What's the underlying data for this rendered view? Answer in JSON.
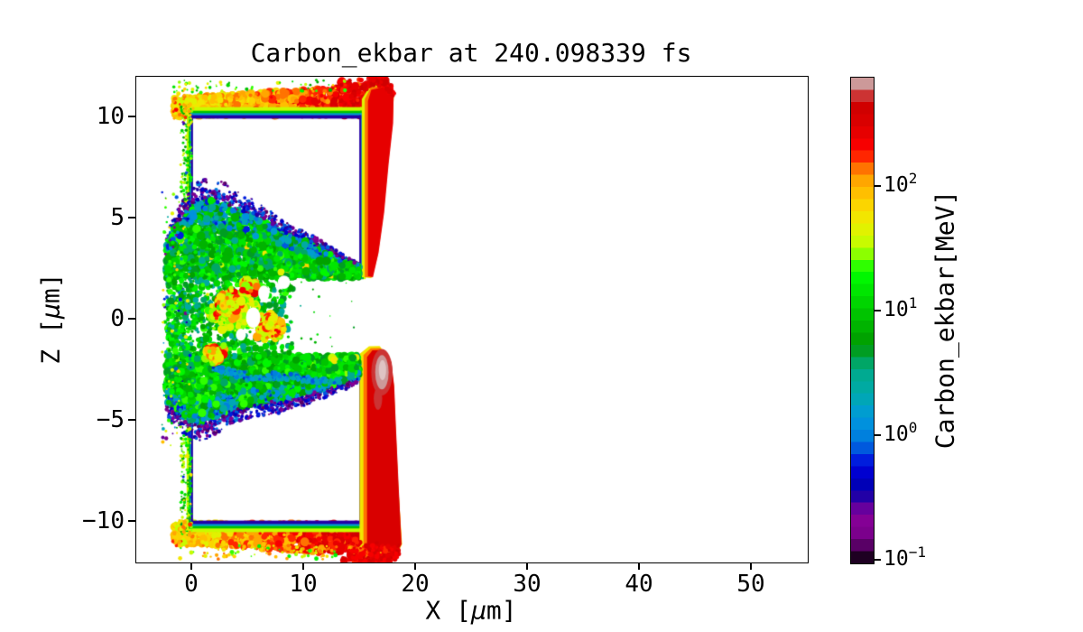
{
  "chart_data": {
    "type": "heatmap",
    "title": "Carbon_ekbar at 240.098339 fs",
    "xlabel": "X [μm]",
    "ylabel": "Z [μm]",
    "xlabel_parts": {
      "pre": "X [",
      "mu": "μ",
      "post": "m]"
    },
    "ylabel_parts": {
      "pre": "Z [",
      "mu": "μ",
      "post": "m]"
    },
    "xlim": [
      -5,
      55
    ],
    "ylim": [
      -12,
      12
    ],
    "xticks": [
      {
        "v": 0,
        "label": "0"
      },
      {
        "v": 10,
        "label": "10"
      },
      {
        "v": 20,
        "label": "20"
      },
      {
        "v": 30,
        "label": "30"
      },
      {
        "v": 40,
        "label": "40"
      },
      {
        "v": 50,
        "label": "50"
      }
    ],
    "yticks": [
      {
        "v": 10,
        "label": "10"
      },
      {
        "v": 5,
        "label": "5"
      },
      {
        "v": 0,
        "label": "0"
      },
      {
        "v": -5,
        "label": "−5"
      },
      {
        "v": -10,
        "label": "−10"
      }
    ],
    "grid": false,
    "colorbar": {
      "label": "Carbon_ekbar[MeV]",
      "scale": "log",
      "vmin": 0.0953,
      "vmax": 745,
      "levels": 40,
      "colormap": "nipy_spectral",
      "ticks": [
        {
          "v": 100,
          "base": "10",
          "exp": "2"
        },
        {
          "v": 10,
          "base": "10",
          "exp": "1"
        },
        {
          "v": 1,
          "base": "10",
          "exp": "0"
        },
        {
          "v": 0.1,
          "base": "10",
          "exp": "−1"
        }
      ],
      "stops": [
        "#1e0022",
        "#590066",
        "#7b008c",
        "#840095",
        "#66009d",
        "#2200a6",
        "#0000b7",
        "#0000d0",
        "#001ddd",
        "#0059dd",
        "#0080dd",
        "#0091dd",
        "#009dd0",
        "#00a6b7",
        "#00aaa2",
        "#00aa91",
        "#00a666",
        "#009d22",
        "#00a200",
        "#00b300",
        "#00c400",
        "#00d500",
        "#00e600",
        "#00f700",
        "#2fff00",
        "#8cff00",
        "#c8fb00",
        "#e1f200",
        "#f2e600",
        "#fbd500",
        "#ffbf00",
        "#ffa600",
        "#ff7300",
        "#ff2600",
        "#f70000",
        "#e60000",
        "#d90000",
        "#d00000",
        "#cc3333",
        "#cc9999"
      ]
    },
    "render": {
      "seed": 20240098,
      "bands": [
        {
          "x0": -1.6,
          "x1": 17.3,
          "zEdge": 10,
          "dir": 1,
          "thick": 1.35,
          "eL": 55,
          "eR": 330,
          "n": 950,
          "grow": true
        },
        {
          "x0": -1.6,
          "x1": 17.6,
          "zEdge": -10,
          "dir": -1,
          "thick": 1.45,
          "eL": 60,
          "eR": 380,
          "n": 1050,
          "grow": true
        }
      ],
      "boxes": [
        {
          "x0": 0,
          "x1": 15,
          "z0": 2.0,
          "z1": 10,
          "sides": [
            "left",
            "top",
            "right"
          ],
          "halo": [
            [
              0.5,
              40,
              0
            ],
            [
              0.32,
              9,
              0
            ],
            [
              0.2,
              1.5,
              0
            ],
            [
              0.1,
              0.3,
              0.07
            ]
          ]
        },
        {
          "x0": 0,
          "x1": 15,
          "z0": -10,
          "z1": -2.0,
          "sides": [
            "left",
            "bottom",
            "right"
          ],
          "halo": [
            [
              0.5,
              40,
              0
            ],
            [
              0.32,
              9,
              0
            ],
            [
              0.2,
              1.5,
              0
            ],
            [
              0.1,
              0.3,
              0.07
            ]
          ]
        }
      ],
      "walls": [
        {
          "layers": [
            {
              "e": 48,
              "pts": [
                [
                  15.15,
                  2.1
                ],
                [
                  16.0,
                  2.05
                ],
                [
                  16.55,
                  3.2
                ],
                [
                  17.05,
                  5.2
                ],
                [
                  17.45,
                  7.6
                ],
                [
                  17.85,
                  9.6
                ],
                [
                  18.05,
                  11.3
                ],
                [
                  17.2,
                  11.7
                ],
                [
                  15.9,
                  11.55
                ],
                [
                  15.15,
                  10.9
                ]
              ]
            },
            {
              "e": 125,
              "pts": [
                [
                  15.42,
                  2.1
                ],
                [
                  16.1,
                  2.08
                ],
                [
                  16.6,
                  3.25
                ],
                [
                  17.1,
                  5.25
                ],
                [
                  17.5,
                  7.65
                ],
                [
                  17.9,
                  9.65
                ],
                [
                  18.02,
                  11.25
                ],
                [
                  17.2,
                  11.6
                ],
                [
                  15.95,
                  11.45
                ],
                [
                  15.42,
                  10.9
                ]
              ]
            },
            {
              "e": 300,
              "pts": [
                [
                  15.7,
                  2.15
                ],
                [
                  16.15,
                  2.1
                ],
                [
                  16.65,
                  3.3
                ],
                [
                  17.15,
                  5.3
                ],
                [
                  17.55,
                  7.7
                ],
                [
                  17.95,
                  9.7
                ],
                [
                  18.0,
                  11.2
                ],
                [
                  17.15,
                  11.5
                ],
                [
                  16.0,
                  11.35
                ],
                [
                  15.7,
                  10.8
                ]
              ]
            }
          ]
        },
        {
          "layers": [
            {
              "e": 55,
              "pts": [
                [
                  14.95,
                  -1.7
                ],
                [
                  15.8,
                  -1.32
                ],
                [
                  16.75,
                  -1.3
                ],
                [
                  17.7,
                  -2.0
                ],
                [
                  18.0,
                  -3.2
                ],
                [
                  18.15,
                  -5.2
                ],
                [
                  18.4,
                  -8.2
                ],
                [
                  18.75,
                  -11.1
                ],
                [
                  18.3,
                  -11.6
                ],
                [
                  16.6,
                  -11.55
                ],
                [
                  14.95,
                  -11.35
                ]
              ]
            },
            {
              "e": 135,
              "pts": [
                [
                  15.3,
                  -1.75
                ],
                [
                  15.95,
                  -1.42
                ],
                [
                  16.8,
                  -1.4
                ],
                [
                  17.75,
                  -2.05
                ],
                [
                  18.02,
                  -3.25
                ],
                [
                  18.17,
                  -5.25
                ],
                [
                  18.42,
                  -8.25
                ],
                [
                  18.72,
                  -11.1
                ],
                [
                  18.3,
                  -11.55
                ],
                [
                  16.6,
                  -11.5
                ],
                [
                  15.3,
                  -11.35
                ]
              ]
            },
            {
              "e": 310,
              "pts": [
                [
                  15.62,
                  -1.85
                ],
                [
                  16.1,
                  -1.52
                ],
                [
                  16.85,
                  -1.5
                ],
                [
                  17.8,
                  -2.1
                ],
                [
                  18.05,
                  -3.3
                ],
                [
                  18.2,
                  -5.3
                ],
                [
                  18.45,
                  -8.3
                ],
                [
                  18.7,
                  -11.1
                ],
                [
                  18.28,
                  -11.5
                ],
                [
                  16.6,
                  -11.45
                ],
                [
                  15.62,
                  -11.3
                ]
              ]
            }
          ]
        }
      ],
      "wallRagged": [
        {
          "pts": [
            [
              15.2,
              11.45
            ],
            [
              16.2,
              11.75
            ],
            [
              17.2,
              11.7
            ],
            [
              17.95,
              11.2
            ]
          ],
          "n": 130,
          "e": [
            220,
            430
          ],
          "jit": 0.3
        },
        {
          "pts": [
            [
              15.6,
              -11.35
            ],
            [
              16.6,
              -11.75
            ],
            [
              17.6,
              -11.8
            ],
            [
              18.5,
              -11.4
            ]
          ],
          "n": 130,
          "e": [
            220,
            430
          ],
          "jit": 0.3
        },
        {
          "pts": [
            [
              14.2,
              -11.2
            ],
            [
              15.2,
              -11.6
            ],
            [
              16.0,
              -11.5
            ]
          ],
          "n": 60,
          "e": [
            120,
            300
          ],
          "jit": 0.25
        }
      ],
      "grayblob": {
        "x": 16.95,
        "z": -2.6,
        "ring": "#cc3333",
        "main": "#cc9999",
        "inner": "#dfc4c4",
        "ringR": [
          0.95,
          1.15
        ],
        "mainR": [
          0.6,
          0.85
        ],
        "innerR": [
          0.33,
          0.5
        ],
        "sub": {
          "x": 16.6,
          "z": -3.9,
          "r": [
            0.38,
            0.55
          ]
        }
      },
      "clouds": [
        {
          "x0": -2.3,
          "x1": 14.9,
          "zNear": 2.05,
          "n": 3200,
          "e0": 3,
          "e1": 22,
          "boundary": [
            [
              -2.3,
              4.0
            ],
            [
              -1.5,
              4.9
            ],
            [
              -0.5,
              5.8
            ],
            [
              0.5,
              6.3
            ],
            [
              1.5,
              6.5
            ],
            [
              2.5,
              6.4
            ],
            [
              3.5,
              6.0
            ],
            [
              4.5,
              5.8
            ],
            [
              5.5,
              5.5
            ],
            [
              6.5,
              5.2
            ],
            [
              7.5,
              4.8
            ],
            [
              8.5,
              4.5
            ],
            [
              9.5,
              4.25
            ],
            [
              10.5,
              4.0
            ],
            [
              11.5,
              3.7
            ],
            [
              12.5,
              3.4
            ],
            [
              13.5,
              3.1
            ],
            [
              14.9,
              2.7
            ]
          ]
        },
        {
          "x0": -2.3,
          "x1": 14.9,
          "zNear": -1.75,
          "n": 3200,
          "e0": 3.5,
          "e1": 24,
          "boundary": [
            [
              -2.3,
              -4.4
            ],
            [
              -1.5,
              -4.9
            ],
            [
              -0.5,
              -5.4
            ],
            [
              0.5,
              -5.6
            ],
            [
              1.5,
              -5.4
            ],
            [
              2.5,
              -5.1
            ],
            [
              3.5,
              -4.8
            ],
            [
              5,
              -4.55
            ],
            [
              6.5,
              -4.4
            ],
            [
              8,
              -4.3
            ],
            [
              9.5,
              -4.1
            ],
            [
              11,
              -3.8
            ],
            [
              12.5,
              -3.5
            ],
            [
              13.5,
              -3.3
            ],
            [
              14.9,
              -3.0
            ]
          ]
        }
      ],
      "streak": {
        "pts": [
          [
            2,
            -2.4
          ],
          [
            4,
            -2.7
          ],
          [
            6,
            -2.9
          ],
          [
            8,
            -2.8
          ],
          [
            10,
            -2.95
          ],
          [
            13,
            -3.05
          ]
        ],
        "n": 190,
        "e": [
          0.7,
          2.6
        ],
        "spread": 0.28,
        "r": [
          1.2,
          3
        ]
      },
      "connector": {
        "x": [
          -2.2,
          9.0
        ],
        "z": [
          -1.95,
          2.25
        ],
        "n": 850,
        "e": [
          2.5,
          26
        ],
        "r": [
          1.2,
          4
        ]
      },
      "yellowBase": {
        "centers": [
          [
            3.6,
            0.4,
            2.6,
            1.2,
            1.0
          ]
        ],
        "n": 380,
        "e": [
          22,
          60
        ],
        "clampX": [
          -0.6,
          9.25
        ],
        "clampZ": [
          -2.5,
          2.35
        ]
      },
      "hotspots": {
        "centers": [
          [
            3.3,
            0.8,
            1.5,
            0.9,
            0.42
          ],
          [
            6.9,
            -0.35,
            1.6,
            0.8,
            0.3
          ],
          [
            2.0,
            -1.7,
            1.1,
            0.6,
            0.16
          ],
          [
            5.2,
            1.6,
            1.2,
            0.5,
            0.12
          ]
        ],
        "n": 620,
        "e": [
          30,
          260
        ],
        "yellowFrac": 0.3,
        "clampX": [
          -0.6,
          9.25
        ],
        "clampZ": [
          -2.5,
          2.35
        ]
      },
      "holes": [
        [
          5.45,
          0.1,
          0.65,
          0.5
        ],
        [
          6.4,
          1.3,
          0.5,
          0.38
        ],
        [
          4.35,
          -0.75,
          0.45,
          0.3
        ],
        [
          8.2,
          1.85,
          0.55,
          0.33
        ]
      ],
      "specks": [
        {
          "x": [
            -2.7,
            -0.1
          ],
          "z": [
            -6.3,
            6.3
          ],
          "n": 150,
          "e": [
            1.2,
            90
          ],
          "r": [
            0.8,
            2.2
          ],
          "navyFrac": 0.2
        },
        {
          "x": [
            -1.7,
            14
          ],
          "z": [
            11.15,
            11.85
          ],
          "n": 65,
          "e": [
            6,
            90
          ],
          "r": [
            0.8,
            2.2
          ],
          "navyFrac": 0
        },
        {
          "x": [
            -1.7,
            13
          ],
          "z": [
            -11.85,
            -11.15
          ],
          "n": 85,
          "e": [
            15,
            150
          ],
          "r": [
            0.8,
            2.4
          ],
          "navyFrac": 0
        },
        {
          "x": [
            -1.05,
            -0.05
          ],
          "z": [
            5.8,
            10.6
          ],
          "n": 130,
          "e": [
            5,
            65
          ],
          "r": [
            0.8,
            2.0
          ],
          "navyFrac": 0.05
        },
        {
          "x": [
            -1.05,
            -0.05
          ],
          "z": [
            -10.6,
            -5.8
          ],
          "n": 130,
          "e": [
            5,
            65
          ],
          "r": [
            0.8,
            2.0
          ],
          "navyFrac": 0.05
        },
        {
          "x": [
            -1.7,
            0.1
          ],
          "z": [
            9.9,
            11.2
          ],
          "n": 30,
          "e": [
            50,
            200
          ],
          "r": [
            1.0,
            2.5
          ],
          "navyFrac": 0
        },
        {
          "x": [
            -1.7,
            0.1
          ],
          "z": [
            -11.2,
            -9.9
          ],
          "n": 30,
          "e": [
            50,
            200
          ],
          "r": [
            1.0,
            2.5
          ],
          "navyFrac": 0
        },
        {
          "x": [
            9.5,
            14.6
          ],
          "z": [
            -1.5,
            2.0
          ],
          "n": 16,
          "e": [
            3,
            20
          ],
          "r": [
            0.7,
            1.6
          ],
          "navyFrac": 0
        },
        {
          "x": [
            14.0,
            18.4
          ],
          "z": [
            -11.9,
            -11.0
          ],
          "n": 110,
          "e": [
            180,
            420
          ],
          "r": [
            1.0,
            3.0
          ],
          "navyFrac": 0
        }
      ]
    }
  }
}
